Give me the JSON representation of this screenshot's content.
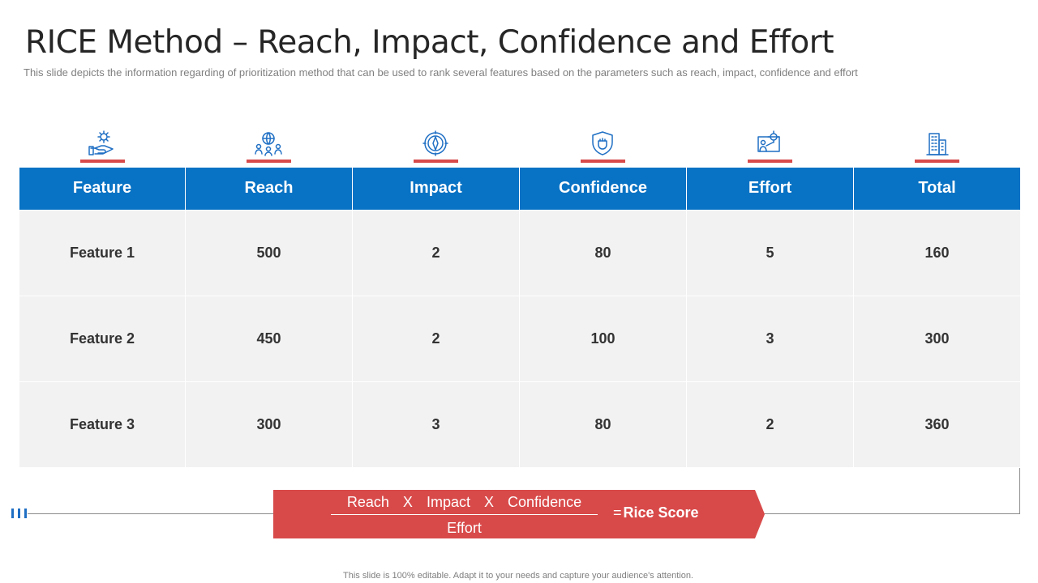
{
  "slide": {
    "title": "RICE Method – Reach, Impact, Confidence and Effort",
    "subtitle": "This slide depicts the information regarding of prioritization method that can be used to rank several features based on the parameters such as reach, impact, confidence and effort",
    "footer": "This slide is 100% editable. Adapt it to your needs and capture your audience's attention."
  },
  "icons": [
    "hand-gear-icon",
    "globe-people-icon",
    "target-compass-icon",
    "shield-fist-icon",
    "presentation-gear-icon",
    "building-icon"
  ],
  "table": {
    "headers": [
      "Feature",
      "Reach",
      "Impact",
      "Confidence",
      "Effort",
      "Total"
    ],
    "rows": [
      [
        "Feature 1",
        "500",
        "2",
        "80",
        "5",
        "160"
      ],
      [
        "Feature 2",
        "450",
        "2",
        "100",
        "3",
        "300"
      ],
      [
        "Feature 3",
        "300",
        "3",
        "80",
        "2",
        "360"
      ]
    ]
  },
  "formula": {
    "numerator_terms": [
      "Reach",
      "X",
      "Impact",
      "X",
      "Confidence"
    ],
    "denominator": "Effort",
    "equals": "=",
    "result": "Rice Score"
  },
  "colors": {
    "header_blue": "#0872c4",
    "accent_red": "#d84a4a",
    "cell_gray": "#f2f2f2",
    "icon_blue": "#1f6fc4"
  }
}
